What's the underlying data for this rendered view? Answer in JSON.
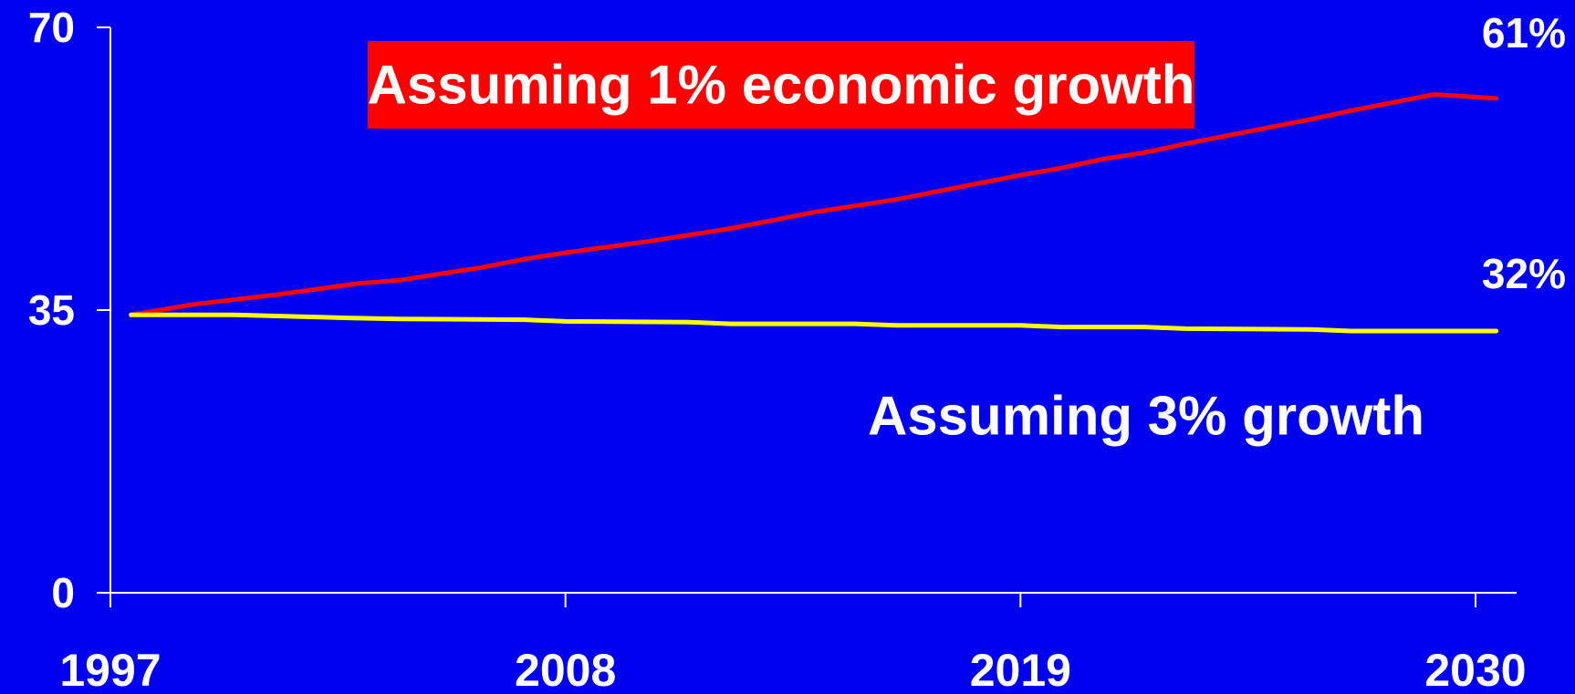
{
  "chart_data": {
    "type": "line",
    "title": "",
    "xlabel": "",
    "ylabel": "",
    "xlim": [
      1997,
      2030
    ],
    "ylim": [
      0,
      70
    ],
    "x_ticks": [
      1997,
      2008,
      2019,
      2030
    ],
    "y_ticks": [
      0,
      35,
      70
    ],
    "x_tick_labels": [
      "1997",
      "2008",
      "2019",
      "2030"
    ],
    "y_tick_labels": [
      "0",
      "35",
      "70"
    ],
    "grid": false,
    "legend": "none",
    "background_color": "#0000f0",
    "axis_color": "#ffffff",
    "series": [
      {
        "color": "#ff0000",
        "x": [
          1997.5,
          1999,
          2000,
          2001,
          2002,
          2003,
          2004,
          2005,
          2006,
          2007,
          2008,
          2009,
          2010,
          2011,
          2012,
          2013,
          2014,
          2015,
          2016,
          2017,
          2018,
          2019,
          2020,
          2021,
          2022,
          2023,
          2024,
          2025,
          2026,
          2027,
          2028,
          2029,
          2030.5
        ],
        "y": [
          34.4,
          35.7,
          36.3,
          36.9,
          37.6,
          38.3,
          38.7,
          39.5,
          40.3,
          41.3,
          42.1,
          42.8,
          43.5,
          44.3,
          45.1,
          46.1,
          47.1,
          47.9,
          48.7,
          49.7,
          50.7,
          51.7,
          52.6,
          53.7,
          54.5,
          55.6,
          56.6,
          57.6,
          58.6,
          59.7,
          60.7,
          61.7,
          61.2
        ]
      },
      {
        "color": "#ffff00",
        "x": [
          1997.5,
          2000,
          2003,
          2004,
          2007,
          2008,
          2011,
          2012,
          2015,
          2016,
          2019,
          2020,
          2022,
          2023,
          2026,
          2027,
          2030.5
        ],
        "y": [
          34.4,
          34.4,
          34.0,
          33.9,
          33.8,
          33.6,
          33.5,
          33.3,
          33.3,
          33.1,
          33.1,
          32.9,
          32.9,
          32.7,
          32.6,
          32.4,
          32.4
        ]
      }
    ],
    "annotations": {
      "red_label": "Assuming 1% economic growth",
      "red_label_bg": "#ff0000",
      "yellow_label": "Assuming 3% growth",
      "end_label_red": "61%",
      "end_label_yellow": "32%"
    }
  }
}
